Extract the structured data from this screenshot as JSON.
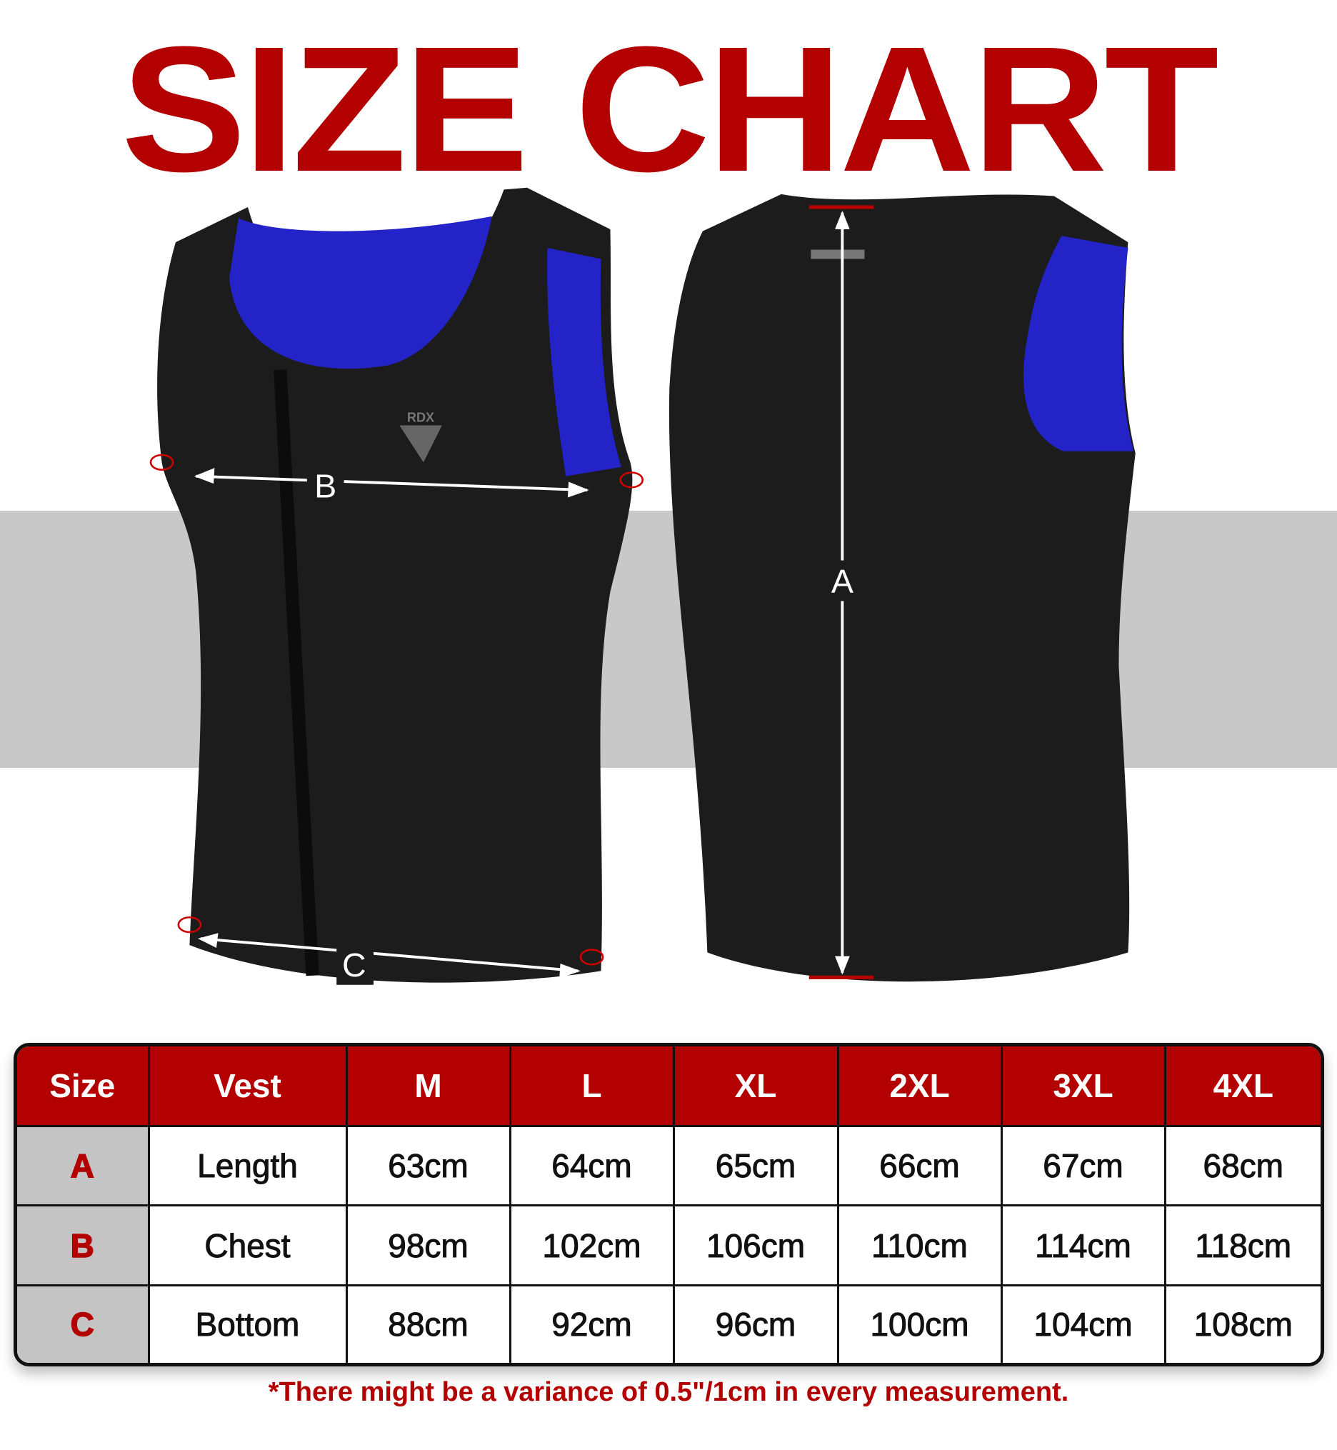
{
  "title": "SIZE CHART",
  "colors": {
    "accent": "#b30000",
    "band": "#c8c8c8",
    "vest": "#1c1c1c",
    "lining": "#2a2ad8"
  },
  "diagram": {
    "brand_logo": "RDX",
    "labels": {
      "length": "A",
      "chest": "B",
      "bottom": "C"
    }
  },
  "table": {
    "headers": [
      "Size",
      "Vest",
      "M",
      "L",
      "XL",
      "2XL",
      "3XL",
      "4XL"
    ],
    "rows": [
      {
        "key": "A",
        "name": "Length",
        "values": [
          "63cm",
          "64cm",
          "65cm",
          "66cm",
          "67cm",
          "68cm"
        ]
      },
      {
        "key": "B",
        "name": "Chest",
        "values": [
          "98cm",
          "102cm",
          "106cm",
          "110cm",
          "114cm",
          "118cm"
        ]
      },
      {
        "key": "C",
        "name": "Bottom",
        "values": [
          "88cm",
          "92cm",
          "96cm",
          "100cm",
          "104cm",
          "108cm"
        ]
      }
    ]
  },
  "footnote": "*There might be a variance of 0.5\"/1cm in every measurement."
}
